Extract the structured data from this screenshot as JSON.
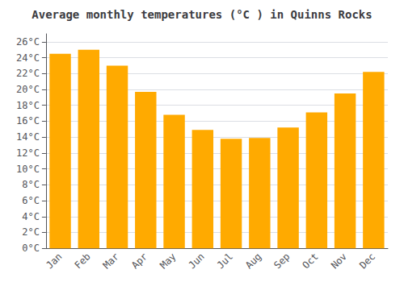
{
  "chart_data": {
    "type": "bar",
    "title": "Average monthly temperatures (°C ) in Quinns Rocks",
    "categories": [
      "Jan",
      "Feb",
      "Mar",
      "Apr",
      "May",
      "Jun",
      "Jul",
      "Aug",
      "Sep",
      "Oct",
      "Nov",
      "Dec"
    ],
    "values": [
      24.5,
      25.0,
      23.0,
      19.7,
      16.8,
      14.9,
      13.8,
      13.9,
      15.2,
      17.1,
      19.5,
      22.2
    ],
    "color": "#FFAA00",
    "ylim": [
      0,
      27
    ],
    "yticks": [
      {
        "value": 0,
        "label": "0°C"
      },
      {
        "value": 2,
        "label": "2°C"
      },
      {
        "value": 4,
        "label": "4°C"
      },
      {
        "value": 6,
        "label": "6°C"
      },
      {
        "value": 8,
        "label": "8°C"
      },
      {
        "value": 10,
        "label": "10°C"
      },
      {
        "value": 12,
        "label": "12°C"
      },
      {
        "value": 14,
        "label": "14°C"
      },
      {
        "value": 16,
        "label": "16°C"
      },
      {
        "value": 18,
        "label": "18°C"
      },
      {
        "value": 20,
        "label": "20°C"
      },
      {
        "value": 22,
        "label": "22°C"
      },
      {
        "value": 24,
        "label": "24°C"
      },
      {
        "value": 26,
        "label": "26°C"
      }
    ],
    "grid": true
  }
}
